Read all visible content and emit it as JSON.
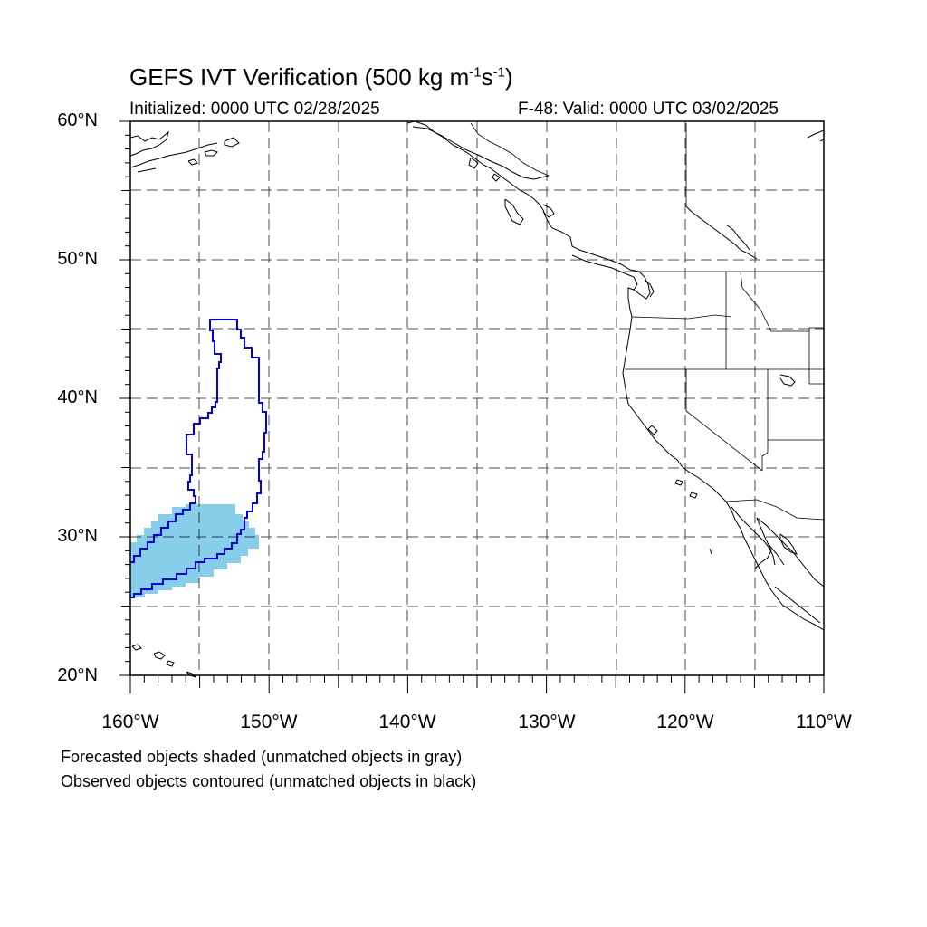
{
  "header": {
    "title_main": "GEFS IVT Verification (500 kg m",
    "title_exp1": "-1",
    "title_mid": "s",
    "title_exp2": "-1",
    "title_end": ")",
    "initialized": "Initialized: 0000 UTC 02/28/2025",
    "valid": "F-48: Valid: 0000 UTC 03/02/2025"
  },
  "map": {
    "lat_labels": [
      "60°N",
      "50°N",
      "40°N",
      "30°N",
      "20°N"
    ],
    "lon_labels": [
      "160°W",
      "150°W",
      "140°W",
      "130°W",
      "120°W",
      "110°W"
    ],
    "lon_range": [
      -160,
      -110
    ],
    "lat_range": [
      20,
      60
    ],
    "forecast_fill_color": "#87CEEB",
    "observed_contour_color": "#0000EE",
    "coastline_color": "#000000",
    "grid_style": "dashed"
  },
  "legend": {
    "line1": "Forecasted objects shaded (unmatched objects in gray)",
    "line2": "Observed objects contoured (unmatched objects in black)"
  }
}
